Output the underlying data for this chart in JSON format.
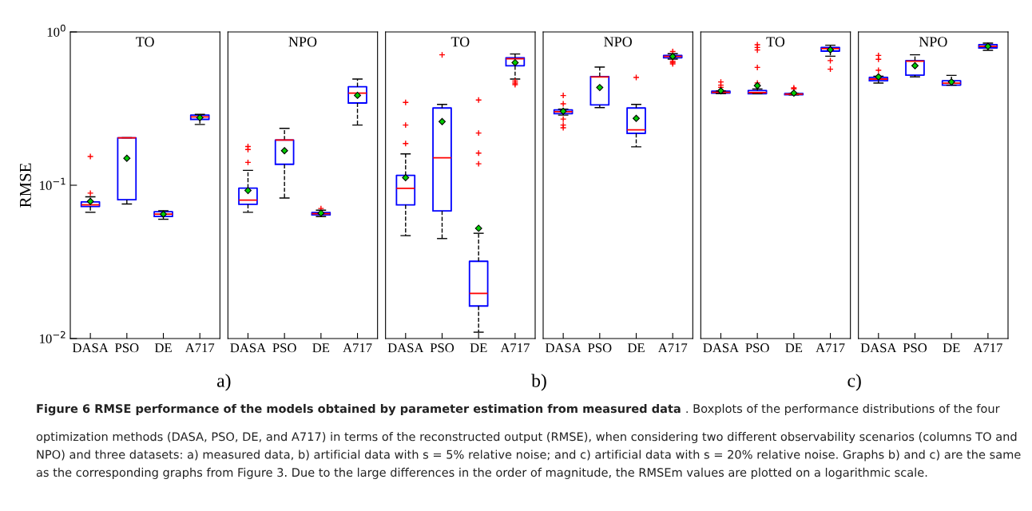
{
  "chart_data": [
    {
      "type": "box",
      "title": "TO",
      "ylabel": "RMSE",
      "categories": [
        "DASA",
        "PSO",
        "DE",
        "A717"
      ],
      "log": true,
      "ylim": [
        0.01,
        1
      ],
      "yticks": [
        {
          "value": 0.01,
          "label": "10$^{−2}$"
        },
        {
          "value": 0.1,
          "label": "10$^{−1}$"
        },
        {
          "value": 1,
          "label": "10$^{0}$"
        }
      ],
      "color": "#0000ff",
      "line_style": "dashed",
      "annotations": [
        "a)"
      ],
      "boxes": [
        {
          "low": 0.0666,
          "q1": 0.0727,
          "median": 0.0745,
          "q3": 0.0778,
          "high": 0.084,
          "mean": 0.0785,
          "outliers": [
            0.0888,
            0.154
          ]
        },
        {
          "low": 0.0754,
          "q1": 0.0804,
          "median": 0.204,
          "q3": 0.204,
          "high": 0.204,
          "mean": 0.15
        },
        {
          "low": 0.06,
          "q1": 0.0625,
          "median": 0.0648,
          "q3": 0.0672,
          "high": 0.0682,
          "mean": 0.0648
        },
        {
          "low": 0.249,
          "q1": 0.269,
          "median": 0.279,
          "q3": 0.287,
          "high": 0.29,
          "mean": 0.276
        }
      ]
    },
    {
      "type": "box",
      "title": "NPO",
      "categories": [
        "DASA",
        "PSO",
        "DE",
        "A717"
      ],
      "log": true,
      "ylim": [
        0.01,
        1
      ],
      "tick_labels": "x",
      "color": "#0000ff",
      "line_style": "dashed",
      "boxes": [
        {
          "low": 0.0666,
          "q1": 0.0751,
          "median": 0.08,
          "q3": 0.0958,
          "high": 0.125,
          "mean": 0.0924,
          "outliers": [
            0.141,
            0.171,
            0.179
          ]
        },
        {
          "low": 0.0826,
          "q1": 0.137,
          "median": 0.197,
          "q3": 0.197,
          "high": 0.235,
          "mean": 0.168
        },
        {
          "low": 0.0625,
          "q1": 0.064,
          "median": 0.0653,
          "q3": 0.0663,
          "high": 0.0687,
          "mean": 0.0658,
          "outliers": [
            0.0705
          ]
        },
        {
          "low": 0.247,
          "q1": 0.344,
          "median": 0.399,
          "q3": 0.439,
          "high": 0.493,
          "mean": 0.386
        }
      ]
    },
    {
      "type": "box",
      "title": "TO",
      "categories": [
        "DASA",
        "PSO",
        "DE",
        "A717"
      ],
      "log": true,
      "ylim": [
        0.01,
        1
      ],
      "tick_labels": "x",
      "color": "#0000ff",
      "line_style": "dashed",
      "annotations": [
        "b)"
      ],
      "boxes": [
        {
          "low": 0.0469,
          "q1": 0.0745,
          "median": 0.0954,
          "q3": 0.116,
          "high": 0.16,
          "mean": 0.112,
          "outliers": [
            0.187,
            0.247,
            0.347
          ]
        },
        {
          "low": 0.0449,
          "q1": 0.068,
          "median": 0.151,
          "q3": 0.319,
          "high": 0.337,
          "mean": 0.26,
          "outliers": [
            0.709
          ]
        },
        {
          "low": 0.011,
          "q1": 0.0163,
          "median": 0.0197,
          "q3": 0.0319,
          "high": 0.0486,
          "mean": 0.0524,
          "outliers": [
            0.138,
            0.162,
            0.219,
            0.36
          ]
        },
        {
          "low": 0.493,
          "q1": 0.602,
          "median": 0.668,
          "q3": 0.679,
          "high": 0.718,
          "mean": 0.631,
          "outliers": [
            0.453,
            0.464,
            0.478
          ]
        }
      ]
    },
    {
      "type": "box",
      "title": "NPO",
      "categories": [
        "DASA",
        "PSO",
        "DE",
        "A717"
      ],
      "log": true,
      "ylim": [
        0.01,
        1
      ],
      "tick_labels": "x",
      "color": "#0000ff",
      "line_style": "dashed",
      "boxes": [
        {
          "low": 0.287,
          "q1": 0.293,
          "median": 0.302,
          "q3": 0.31,
          "high": 0.314,
          "mean": 0.304,
          "outliers": [
            0.237,
            0.247,
            0.27,
            0.34,
            0.385
          ]
        },
        {
          "low": 0.321,
          "q1": 0.334,
          "median": 0.509,
          "q3": 0.511,
          "high": 0.59,
          "mean": 0.434
        },
        {
          "low": 0.178,
          "q1": 0.218,
          "median": 0.23,
          "q3": 0.319,
          "high": 0.337,
          "mean": 0.273,
          "outliers": [
            0.505
          ]
        },
        {
          "low": 0.665,
          "q1": 0.679,
          "median": 0.692,
          "q3": 0.703,
          "high": 0.721,
          "mean": 0.692,
          "outliers": [
            0.619,
            0.631,
            0.644,
            0.745
          ]
        }
      ]
    },
    {
      "type": "box",
      "title": "TO",
      "categories": [
        "DASA",
        "PSO",
        "DE",
        "A717"
      ],
      "log": true,
      "ylim": [
        0.01,
        1
      ],
      "tick_labels": "x",
      "color": "#0000ff",
      "line_style": "dashed",
      "annotations": [
        "c)"
      ],
      "boxes": [
        {
          "low": 0.396,
          "q1": 0.399,
          "median": 0.404,
          "q3": 0.411,
          "high": 0.412,
          "mean": 0.413,
          "outliers": [
            0.435,
            0.45,
            0.472
          ]
        },
        {
          "low": 0.396,
          "q1": 0.396,
          "median": 0.402,
          "q3": 0.415,
          "high": 0.424,
          "mean": 0.446,
          "outliers": [
            0.465,
            0.587,
            0.762,
            0.793,
            0.826
          ]
        },
        {
          "low": 0.389,
          "q1": 0.39,
          "median": 0.393,
          "q3": 0.396,
          "high": 0.396,
          "mean": 0.399,
          "outliers": [
            0.425,
            0.432
          ]
        },
        {
          "low": 0.695,
          "q1": 0.75,
          "median": 0.778,
          "q3": 0.793,
          "high": 0.819,
          "mean": 0.765,
          "outliers": [
            0.572,
            0.65
          ]
        }
      ]
    },
    {
      "type": "box",
      "title": "NPO",
      "categories": [
        "DASA",
        "PSO",
        "DE",
        "A717"
      ],
      "log": true,
      "ylim": [
        0.01,
        1
      ],
      "tick_labels": "x",
      "color": "#0000ff",
      "line_style": "dashed",
      "annotations": [
        "Figure 6 RMSE performance of the models obtained by parameter estimation from measured data",
        ". Boxplots of the performance distributions of the four optimization methods (DASA, PSO, DE, and A717) in terms of the reconstructed output (RMSE), when considering two different observability scenarios (columns TO and NPO) and three datasets: a) measured data, b) artificial data with s = 5% relative noise; and c) artificial data with s = 20% relative noise. Graphs b) and c) are the same as the corresponding graphs from Figure 3. Due to the large differences in the order of magnitude, the RMSEm values are plotted on a logarithmic scale."
      ],
      "boxes": [
        {
          "low": 0.464,
          "q1": 0.48,
          "median": 0.493,
          "q3": 0.505,
          "high": 0.515,
          "mean": 0.509,
          "outliers": [
            0.562,
            0.663,
            0.703
          ]
        },
        {
          "low": 0.509,
          "q1": 0.523,
          "median": 0.644,
          "q3": 0.65,
          "high": 0.709,
          "mean": 0.602
        },
        {
          "low": 0.45,
          "q1": 0.45,
          "median": 0.464,
          "q3": 0.481,
          "high": 0.521,
          "mean": 0.472
        },
        {
          "low": 0.759,
          "q1": 0.787,
          "median": 0.805,
          "q3": 0.826,
          "high": 0.845,
          "mean": 0.805
        }
      ]
    }
  ]
}
